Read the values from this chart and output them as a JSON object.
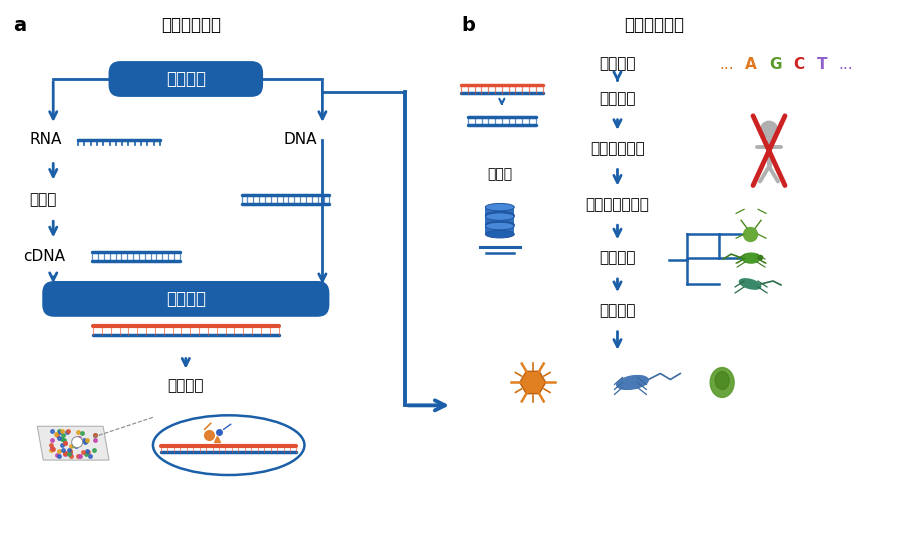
{
  "title_a": "测序实验流程",
  "title_b": "序列分析流程",
  "label_a": "a",
  "label_b": "b",
  "blue_dark": "#1a5fa8",
  "blue_mid": "#2166b0",
  "red_strand": "#e05030",
  "red_cross": "#cc2222",
  "orange": "#e07820",
  "green_bug": "#5a9a3a",
  "teal_bug": "#3a8a6a",
  "gray": "#999999",
  "bg": "#ffffff",
  "agct_colors": [
    "#e07820",
    "#5a9a2a",
    "#cc2222",
    "#9060cc"
  ]
}
